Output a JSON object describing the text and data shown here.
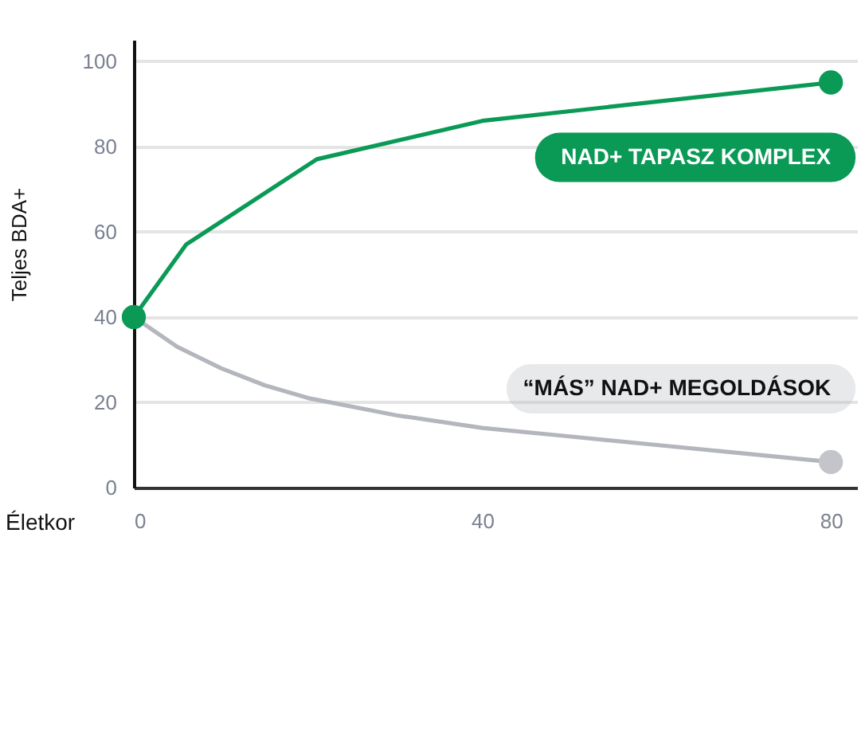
{
  "chart_data": {
    "type": "line",
    "xlabel": "Életkor",
    "ylabel": "Teljes BDA+",
    "xlim": [
      0,
      83
    ],
    "xticks": [
      0,
      40,
      80
    ],
    "ylim": [
      0,
      105
    ],
    "yticks": [
      0,
      20,
      40,
      60,
      80,
      100
    ],
    "grid": "y",
    "line_style": "solid",
    "series": [
      {
        "name": "NAD+ TAPASZ KOMPLEX",
        "color": "#0a9a56",
        "x": [
          0,
          6,
          21,
          40,
          80
        ],
        "values": [
          40,
          57,
          77,
          86,
          95
        ]
      },
      {
        "name": "“MÁS” NAD+ MEGOLDÁSOK",
        "color": "#b4b6bd",
        "x": [
          0,
          5,
          10,
          15,
          20,
          30,
          40,
          50,
          60,
          70,
          80
        ],
        "values": [
          40,
          33,
          28,
          24,
          21,
          17,
          14,
          12,
          10,
          8,
          6
        ]
      },
      {
        "type": "scatter",
        "marker": "circle",
        "color": "#0a9a56",
        "x": [
          0,
          80
        ],
        "values": [
          40,
          95
        ]
      },
      {
        "type": "scatter",
        "marker": "circle",
        "color": "#c4c5ca",
        "x": [
          80
        ],
        "values": [
          6
        ]
      }
    ]
  }
}
